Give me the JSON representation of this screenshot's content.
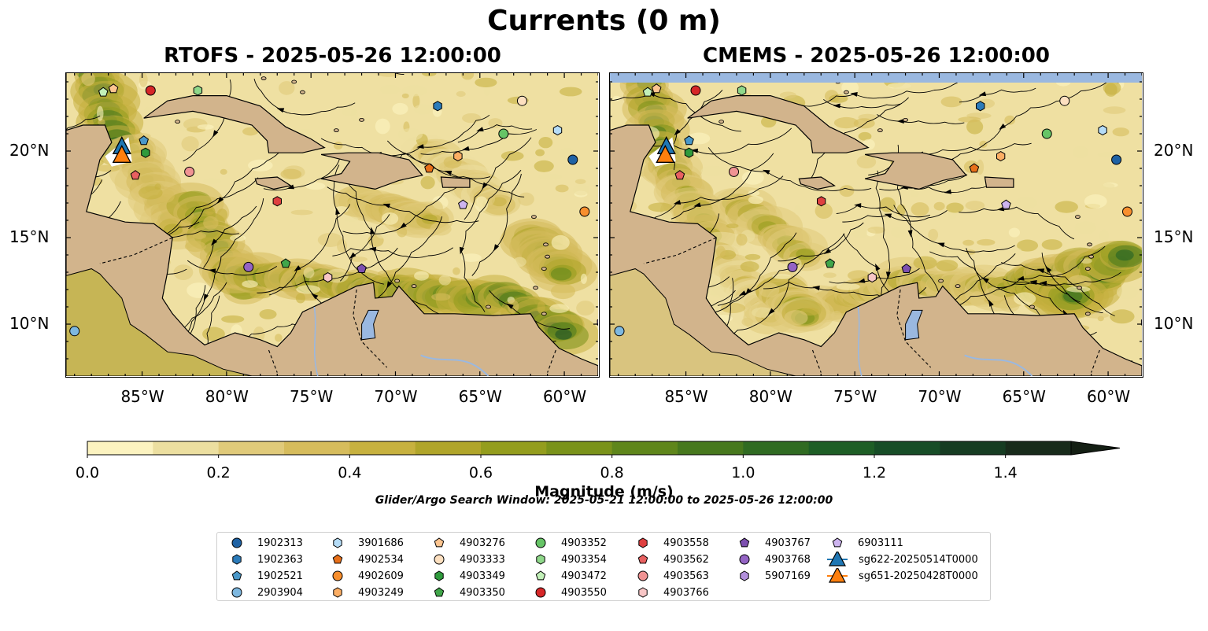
{
  "figure": {
    "title": "Currents (0 m)",
    "left_panel_title": "RTOFS - 2025-05-26 12:00:00",
    "right_panel_title": "CMEMS - 2025-05-26 12:00:00",
    "lon_ticks": [
      "85°W",
      "80°W",
      "75°W",
      "70°W",
      "65°W",
      "60°W"
    ],
    "lat_ticks": [
      "20°N",
      "15°N",
      "10°N"
    ],
    "extent": {
      "lon": [
        -89.5,
        -58
      ],
      "lat": [
        7,
        24.5
      ]
    }
  },
  "colorbar": {
    "label": "Magnitude (m/s)",
    "ticks": [
      "0.0",
      "0.2",
      "0.4",
      "0.6",
      "0.8",
      "1.0",
      "1.2",
      "1.4"
    ],
    "range": [
      0,
      1.5
    ],
    "extend": "max",
    "colors": [
      "#fcf3c0",
      "#ecdfa0",
      "#e0ca7a",
      "#d6bc5c",
      "#c7b13f",
      "#b0a52a",
      "#949d1d",
      "#7a921a",
      "#5f861b",
      "#47781d",
      "#306b22",
      "#1e5e26",
      "#174d27",
      "#163c22",
      "#182b1b"
    ],
    "extend_color": "#141f14"
  },
  "search_window": "Glider/Argo Search Window: 2025-05-21 12:00:00 to 2025-05-26 12:00:00",
  "legend": {
    "columns": [
      [
        {
          "id": "1902313",
          "marker": "circle",
          "color": "#1f62a4"
        },
        {
          "id": "1902363",
          "marker": "hexagon",
          "color": "#2b7bba"
        },
        {
          "id": "1902521",
          "marker": "pentagon",
          "color": "#4a98c9"
        },
        {
          "id": "2903904",
          "marker": "circle",
          "color": "#7eb8e0"
        }
      ],
      [
        {
          "id": "3901686",
          "marker": "hexagon",
          "color": "#b5dcf7"
        },
        {
          "id": "4902534",
          "marker": "pentagon",
          "color": "#e8701a"
        },
        {
          "id": "4902609",
          "marker": "circle",
          "color": "#f88f2e"
        },
        {
          "id": "4903249",
          "marker": "hexagon",
          "color": "#fcae64"
        }
      ],
      [
        {
          "id": "4903276",
          "marker": "pentagon",
          "color": "#fdc590"
        },
        {
          "id": "4903333",
          "marker": "circle",
          "color": "#fde0c0"
        },
        {
          "id": "4903349",
          "marker": "hexagon",
          "color": "#2f9a3c"
        },
        {
          "id": "4903350",
          "marker": "pentagon",
          "color": "#40a64a"
        }
      ],
      [
        {
          "id": "4903352",
          "marker": "circle",
          "color": "#66c466"
        },
        {
          "id": "4903354",
          "marker": "hexagon",
          "color": "#8fd88a"
        },
        {
          "id": "4903472",
          "marker": "pentagon",
          "color": "#c2f0b8"
        },
        {
          "id": "4903550",
          "marker": "circle",
          "color": "#d62728"
        }
      ],
      [
        {
          "id": "4903558",
          "marker": "hexagon",
          "color": "#df4040"
        },
        {
          "id": "4903562",
          "marker": "pentagon",
          "color": "#e86060"
        },
        {
          "id": "4903563",
          "marker": "circle",
          "color": "#f09393"
        },
        {
          "id": "4903766",
          "marker": "hexagon",
          "color": "#f8c6c6"
        }
      ],
      [
        {
          "id": "4903767",
          "marker": "pentagon",
          "color": "#7d50b0"
        },
        {
          "id": "4903768",
          "marker": "circle",
          "color": "#9464c4"
        },
        {
          "id": "5907169",
          "marker": "hexagon",
          "color": "#b28fdc"
        }
      ],
      [
        {
          "id": "6903111",
          "marker": "pentagon",
          "color": "#cdb4ef"
        },
        {
          "id": "sg622-20250514T0000",
          "marker": "triangle",
          "color": "#1f77b4"
        },
        {
          "id": "sg651-20250428T0000",
          "marker": "triangle",
          "color": "#ff7f0e"
        }
      ]
    ]
  },
  "observations": [
    {
      "id": "1902313",
      "lon": -59.5,
      "lat": 19.5
    },
    {
      "id": "1902363",
      "lon": -67.5,
      "lat": 22.6
    },
    {
      "id": "1902521",
      "lon": -84.9,
      "lat": 20.6
    },
    {
      "id": "2903904",
      "lon": -89.0,
      "lat": 9.6
    },
    {
      "id": "3901686",
      "lon": -60.4,
      "lat": 21.2
    },
    {
      "id": "4902534",
      "lon": -68.0,
      "lat": 19.0
    },
    {
      "id": "4902609",
      "lon": -58.8,
      "lat": 16.5
    },
    {
      "id": "4903249",
      "lon": -66.3,
      "lat": 19.7
    },
    {
      "id": "4903276",
      "lon": -86.7,
      "lat": 23.6
    },
    {
      "id": "4903333",
      "lon": -62.5,
      "lat": 22.9
    },
    {
      "id": "4903349",
      "lon": -84.8,
      "lat": 19.9
    },
    {
      "id": "4903350",
      "lon": -76.5,
      "lat": 13.5
    },
    {
      "id": "4903352",
      "lon": -63.6,
      "lat": 21.0
    },
    {
      "id": "4903354",
      "lon": -81.7,
      "lat": 23.5
    },
    {
      "id": "4903472",
      "lon": -87.3,
      "lat": 23.4
    },
    {
      "id": "4903550",
      "lon": -84.5,
      "lat": 23.5
    },
    {
      "id": "4903558",
      "lon": -77.0,
      "lat": 17.1
    },
    {
      "id": "4903562",
      "lon": -85.4,
      "lat": 18.6
    },
    {
      "id": "4903563",
      "lon": -82.2,
      "lat": 18.8
    },
    {
      "id": "4903766",
      "lon": -74.0,
      "lat": 12.7
    },
    {
      "id": "4903767",
      "lon": -72.0,
      "lat": 13.2
    },
    {
      "id": "4903768",
      "lon": -78.7,
      "lat": 13.3
    },
    {
      "id": "5907169",
      "lon": -57.8,
      "lat": 10.1
    },
    {
      "id": "6903111",
      "lon": -66.0,
      "lat": 16.9
    },
    {
      "id": "sg622-20250514T0000",
      "lon": -86.2,
      "lat": 20.2
    },
    {
      "id": "sg651-20250428T0000",
      "lon": -86.2,
      "lat": 19.7
    }
  ]
}
